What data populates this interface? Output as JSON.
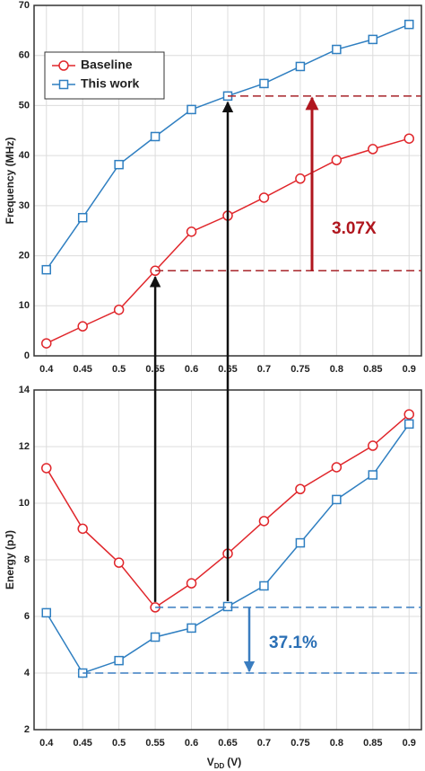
{
  "chart_data": [
    {
      "type": "line",
      "ylabel": "Frequency (MHz)",
      "x": [
        0.4,
        0.45,
        0.5,
        0.55,
        0.6,
        0.65,
        0.7,
        0.75,
        0.8,
        0.85,
        0.9
      ],
      "series": [
        {
          "name": "Baseline",
          "color": "#e0262b",
          "marker": "circle",
          "values": [
            2.5,
            5.9,
            9.2,
            17,
            24.8,
            28,
            31.6,
            35.4,
            39.1,
            41.3,
            43.4
          ]
        },
        {
          "name": "This work",
          "color": "#2f7fc1",
          "marker": "square",
          "values": [
            17.2,
            27.6,
            38.2,
            43.8,
            49.2,
            51.9,
            54.4,
            57.8,
            61.2,
            63.2,
            66.2
          ]
        }
      ],
      "xlim": [
        0.383,
        0.917
      ],
      "xticks": [
        0.4,
        0.45,
        0.5,
        0.55,
        0.6,
        0.65,
        0.7,
        0.75,
        0.8,
        0.85,
        0.9
      ],
      "ylim": [
        0,
        70
      ],
      "yticks": [
        0,
        10,
        20,
        30,
        40,
        50,
        60,
        70
      ],
      "grid": true,
      "legend": "upper left",
      "annotations": [
        "3.07X"
      ]
    },
    {
      "type": "line",
      "ylabel": "Energy (pJ)",
      "xlabel": [
        "V",
        "DD",
        "(V)"
      ],
      "x": [
        0.4,
        0.45,
        0.5,
        0.55,
        0.6,
        0.65,
        0.7,
        0.75,
        0.8,
        0.85,
        0.9
      ],
      "series": [
        {
          "name": "Baseline",
          "color": "#e0262b",
          "marker": "circle",
          "values": [
            11.24,
            9.1,
            7.9,
            6.32,
            7.17,
            8.22,
            9.37,
            10.5,
            11.27,
            12.03,
            13.14
          ]
        },
        {
          "name": "This work",
          "color": "#2f7fc1",
          "marker": "square",
          "values": [
            6.13,
            4.0,
            4.44,
            5.27,
            5.59,
            6.35,
            7.08,
            8.6,
            10.13,
            11.0,
            12.8
          ]
        }
      ],
      "xlim": [
        0.383,
        0.917
      ],
      "xticks": [
        0.4,
        0.45,
        0.5,
        0.55,
        0.6,
        0.65,
        0.7,
        0.75,
        0.8,
        0.85,
        0.9
      ],
      "ylim": [
        2,
        14
      ],
      "yticks": [
        2,
        4,
        6,
        8,
        10,
        12,
        14
      ],
      "grid": true,
      "annotations": [
        "37.1%"
      ]
    }
  ]
}
